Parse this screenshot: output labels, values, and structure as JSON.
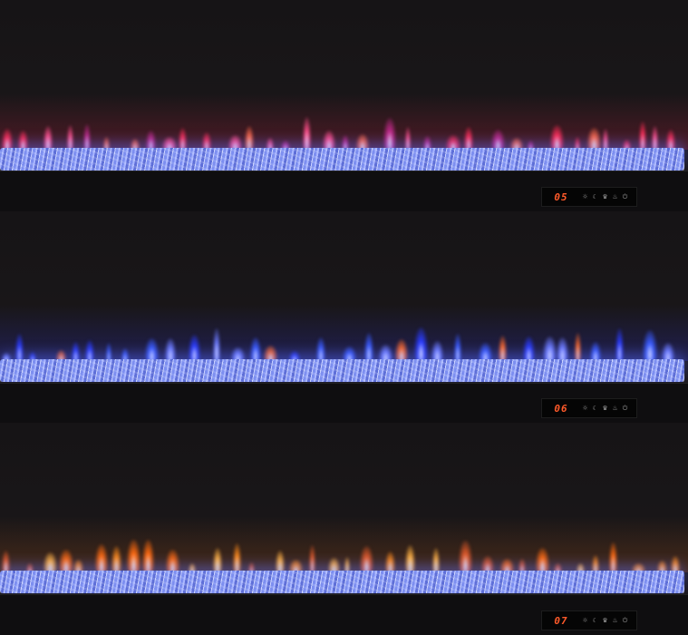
{
  "panels": [
    {
      "display": "05",
      "flame_colors": [
        "#ff2d55",
        "#ff4f8a",
        "#c02a8a",
        "#ff6a4a"
      ],
      "glow": "#b8203e"
    },
    {
      "display": "06",
      "flame_colors": [
        "#3a5bff",
        "#6d7bff",
        "#ff6a2a",
        "#2b3cff"
      ],
      "glow": "#2b2fbf"
    },
    {
      "display": "07",
      "flame_colors": [
        "#ff8a1a",
        "#ffb040",
        "#ff6a10",
        "#e05a2a"
      ],
      "glow": "#a0501a"
    }
  ],
  "control_icons": [
    "light-icon",
    "moon-icon",
    "crown-icon",
    "heater-icon",
    "power-icon"
  ],
  "icon_glyphs": [
    "☼",
    "☾",
    "♛",
    "♨",
    "⏻"
  ]
}
